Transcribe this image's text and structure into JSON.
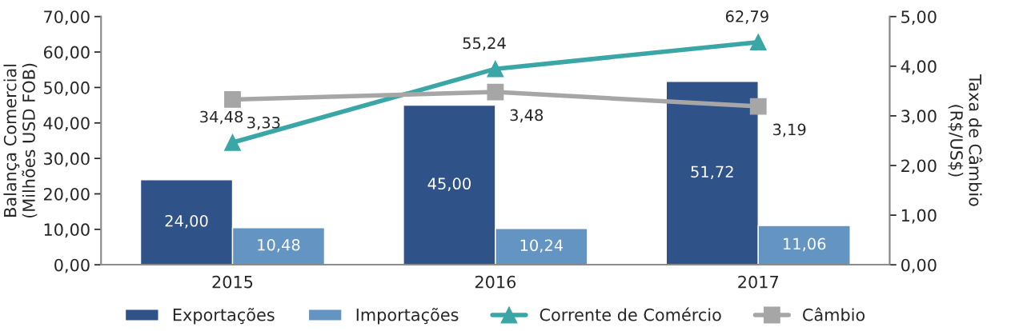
{
  "chart_data": {
    "type": "bar",
    "categories": [
      "2015",
      "2016",
      "2017"
    ],
    "ylabel": "Balança Comercial\n(Milhões USD FOB)",
    "y2label": "Taxa de Câmbio\n(R$/US$)",
    "ylim": [
      0,
      70
    ],
    "yticks": [
      {
        "value": 0,
        "label": "0,00"
      },
      {
        "value": 10,
        "label": "10,00"
      },
      {
        "value": 20,
        "label": "20,00"
      },
      {
        "value": 30,
        "label": "30,00"
      },
      {
        "value": 40,
        "label": "40,00"
      },
      {
        "value": 50,
        "label": "50,00"
      },
      {
        "value": 60,
        "label": "60,00"
      },
      {
        "value": 70,
        "label": "70,00"
      }
    ],
    "y2lim": [
      0,
      5
    ],
    "y2ticks": [
      {
        "value": 0,
        "label": "0,00"
      },
      {
        "value": 1,
        "label": "1,00"
      },
      {
        "value": 2,
        "label": "2,00"
      },
      {
        "value": 3,
        "label": "3,00"
      },
      {
        "value": 4,
        "label": "4,00"
      },
      {
        "value": 5,
        "label": "5,00"
      }
    ],
    "series": [
      {
        "name": "Exportações",
        "color": "#2f5289",
        "values": [
          24.0,
          45.0,
          51.72
        ],
        "value_labels": [
          "24,00",
          "45,00",
          "51,72"
        ]
      },
      {
        "name": "Importações",
        "color": "#6495c2",
        "values": [
          10.48,
          10.24,
          11.06
        ],
        "value_labels": [
          "10,48",
          "10,24",
          "11,06"
        ]
      },
      {
        "name": "Corrente de Comércio",
        "type": "line",
        "color": "#3aa6a6",
        "marker": "triangle",
        "values": [
          34.48,
          55.24,
          62.79
        ],
        "value_labels": [
          "34,48",
          "55,24",
          "62,79"
        ]
      },
      {
        "name": "Câmbio",
        "type": "line",
        "axis": "y2",
        "color": "#a6a6a6",
        "marker": "square",
        "values": [
          3.33,
          3.48,
          3.19
        ],
        "value_labels": [
          "3,33",
          "3,48",
          "3,19"
        ]
      }
    ],
    "grid": false,
    "legend": "bottom"
  }
}
